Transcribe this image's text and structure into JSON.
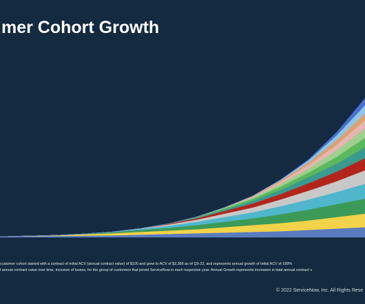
{
  "chart_data": {
    "type": "stacked-area",
    "title": "mer Cohort Growth",
    "categories": [
      null,
      null,
      null,
      null,
      null,
      null,
      null,
      null,
      null,
      null,
      null,
      null,
      null,
      null
    ],
    "ylim": [
      0,
      210
    ],
    "series": [
      {
        "color": "#5b7bbf",
        "values": [
          1,
          1.5,
          2,
          2.5,
          3,
          4,
          5,
          6,
          7,
          8,
          9,
          11,
          13,
          15
        ]
      },
      {
        "color": "#f3d34a",
        "values": [
          0,
          0.5,
          1,
          2,
          3,
          4,
          5,
          6,
          8,
          10,
          12,
          14,
          17,
          20
        ]
      },
      {
        "color": "#3c9a58",
        "values": [
          0,
          0,
          0,
          0.5,
          1.5,
          3,
          4,
          6,
          8,
          10,
          13,
          16,
          19,
          22
        ]
      },
      {
        "color": "#4fb6cb",
        "values": [
          0,
          0,
          0,
          0,
          0.5,
          1.5,
          3,
          5,
          7,
          9,
          12,
          15,
          18,
          22
        ]
      },
      {
        "color": "#c8c8c8",
        "values": [
          0,
          0,
          0,
          0,
          0,
          0.5,
          2,
          3,
          5,
          7,
          10,
          13,
          16,
          20
        ]
      },
      {
        "color": "#b3251c",
        "values": [
          0,
          0,
          0,
          0,
          0,
          0,
          1,
          2,
          4,
          6,
          8,
          11,
          14,
          18
        ]
      },
      {
        "color": "#3a9a90",
        "values": [
          0,
          0,
          0,
          0,
          0,
          0,
          0,
          1,
          2,
          4,
          6,
          9,
          12,
          16
        ]
      },
      {
        "color": "#5cb85c",
        "values": [
          0,
          0,
          0,
          0,
          0,
          0,
          0,
          1,
          2,
          3,
          5,
          7,
          10,
          14
        ]
      },
      {
        "color": "#9fd08f",
        "values": [
          0,
          0,
          0,
          0,
          0,
          0,
          0,
          0,
          1,
          2,
          4,
          6,
          10,
          14
        ]
      },
      {
        "color": "#e8b4b4",
        "values": [
          0,
          0,
          0,
          0,
          0,
          0,
          0,
          0,
          0,
          1,
          3,
          5,
          8,
          12
        ]
      },
      {
        "color": "#d9a36f",
        "values": [
          0,
          0,
          0,
          0,
          0,
          0,
          0,
          0,
          0,
          1,
          2,
          4,
          7,
          10
        ]
      },
      {
        "color": "#8ec5e8",
        "values": [
          0,
          0,
          0,
          0,
          0,
          0,
          0,
          0,
          0,
          0,
          1,
          3,
          7,
          12
        ]
      },
      {
        "color": "#4a6fd0",
        "values": [
          0,
          0,
          0,
          0,
          0,
          0,
          0,
          0,
          0,
          0,
          0,
          1,
          4,
          10
        ]
      }
    ],
    "footnotes": [
      "customer cohort started with a contract of initial ACV (annual contract value) of $100 and grew to ACV of $2,368 as of Q3-22, and represents annual growth of initial ACV of 189%",
      "l annual contract value over time, inclusive of losses, for the group of customers that joined ServiceNow in each respective year.  Annual Growth represents increases in total annual contract v"
    ],
    "copyright": "© 2022 ServiceNow, Inc. All Rights Rese"
  }
}
